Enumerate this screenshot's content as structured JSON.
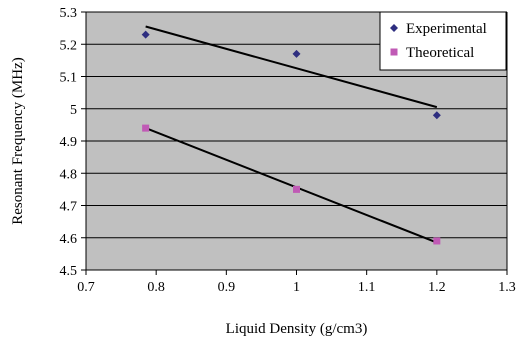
{
  "chart_data": {
    "type": "scatter",
    "xlabel": "Liquid Density (g/cm3)",
    "ylabel": "Resonant Frequency (MHz)",
    "xlim": [
      0.7,
      1.3
    ],
    "ylim": [
      4.5,
      5.3
    ],
    "xticks": [
      "0.7",
      "0.8",
      "0.9",
      "1",
      "1.1",
      "1.2",
      "1.3"
    ],
    "yticks": [
      "4.5",
      "4.6",
      "4.7",
      "4.8",
      "4.9",
      "5",
      "5.1",
      "5.2",
      "5.3"
    ],
    "grid": "horizontal",
    "legend_position": "top-right",
    "plot_background": "#c0c0c0",
    "series": [
      {
        "name": "Experimental",
        "marker": "diamond",
        "color": "#2e2e80",
        "x": [
          0.785,
          1.0,
          1.2
        ],
        "y": [
          5.23,
          5.17,
          4.98
        ],
        "trendline": {
          "x": [
            0.785,
            1.2
          ],
          "y": [
            5.255,
            5.005
          ]
        }
      },
      {
        "name": "Theoretical",
        "marker": "square",
        "color": "#c05ab5",
        "x": [
          0.785,
          1.0,
          1.2
        ],
        "y": [
          4.94,
          4.75,
          4.59
        ],
        "trendline": {
          "x": [
            0.785,
            1.2
          ],
          "y": [
            4.94,
            4.585
          ]
        }
      }
    ]
  }
}
